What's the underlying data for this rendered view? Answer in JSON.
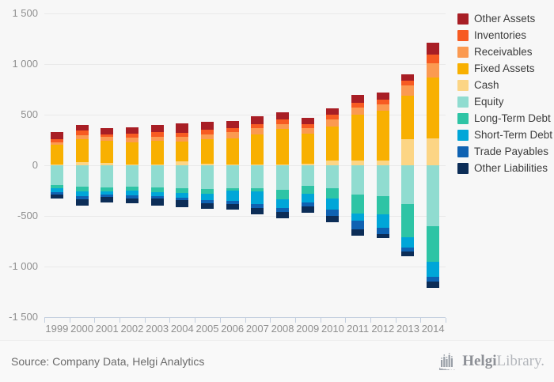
{
  "chart_data": {
    "type": "bar",
    "stacked": true,
    "title": "",
    "xlabel": "",
    "ylabel": "",
    "ylim": [
      -1500,
      1500
    ],
    "grid": true,
    "legend_position": "right",
    "yticks": [
      {
        "value": 1500,
        "label": "1 500"
      },
      {
        "value": 1000,
        "label": "1 000"
      },
      {
        "value": 500,
        "label": "500"
      },
      {
        "value": 0,
        "label": "0"
      },
      {
        "value": -500,
        "label": "-500"
      },
      {
        "value": -1000,
        "label": "-1 000"
      },
      {
        "value": -1500,
        "label": "-1 500"
      }
    ],
    "categories": [
      "1999",
      "2000",
      "2001",
      "2002",
      "2003",
      "2004",
      "2005",
      "2006",
      "2007",
      "2008",
      "2009",
      "2010",
      "2011",
      "2012",
      "2013",
      "2014"
    ],
    "series": [
      {
        "name": "Other Assets",
        "color": "#a81e25",
        "values": [
          70,
          60,
          60,
          65,
          70,
          95,
          80,
          70,
          80,
          70,
          65,
          65,
          80,
          70,
          65,
          120
        ]
      },
      {
        "name": "Inventories",
        "color": "#f75b22",
        "values": [
          30,
          40,
          25,
          40,
          40,
          40,
          45,
          45,
          40,
          45,
          40,
          45,
          45,
          45,
          45,
          85
        ]
      },
      {
        "name": "Receivables",
        "color": "#fb9a51",
        "values": [
          30,
          45,
          40,
          45,
          40,
          45,
          50,
          60,
          60,
          45,
          50,
          70,
          70,
          65,
          105,
          140
        ]
      },
      {
        "name": "Fixed Assets",
        "color": "#f8b001",
        "values": [
          190,
          225,
          220,
          215,
          235,
          195,
          240,
          255,
          295,
          350,
          300,
          340,
          455,
          490,
          425,
          600
        ]
      },
      {
        "name": "Cash",
        "color": "#fcd585",
        "values": [
          10,
          30,
          20,
          10,
          10,
          40,
          15,
          10,
          10,
          10,
          15,
          45,
          45,
          50,
          260,
          265
        ]
      },
      {
        "name": "Equity",
        "color": "#90dcd0",
        "values": [
          -195,
          -210,
          -215,
          -210,
          -220,
          -225,
          -235,
          -225,
          -230,
          -245,
          -205,
          -230,
          -290,
          -305,
          -385,
          -605
        ]
      },
      {
        "name": "Long-Term Debt",
        "color": "#2ec4a5",
        "values": [
          -35,
          -45,
          -40,
          -40,
          -45,
          -45,
          -50,
          -25,
          -30,
          -90,
          -75,
          -100,
          -190,
          -180,
          -325,
          -350
        ]
      },
      {
        "name": "Short-Term Debt",
        "color": "#00a6d8",
        "values": [
          -35,
          -50,
          -35,
          -45,
          -40,
          -50,
          -55,
          -100,
          -120,
          -85,
          -90,
          -110,
          -70,
          -135,
          -100,
          -145
        ]
      },
      {
        "name": "Trade Payables",
        "color": "#0f62b2",
        "values": [
          -25,
          -30,
          -25,
          -30,
          -25,
          -25,
          -35,
          -30,
          -40,
          -40,
          -40,
          -60,
          -80,
          -60,
          -40,
          -45
        ]
      },
      {
        "name": "Other Liabilities",
        "color": "#0c2d57",
        "values": [
          -40,
          -65,
          -50,
          -50,
          -65,
          -70,
          -55,
          -60,
          -65,
          -60,
          -60,
          -65,
          -65,
          -40,
          -50,
          -65
        ]
      }
    ]
  },
  "footer": {
    "source_label": "Source: Company Data, Helgi Analytics"
  },
  "logo": {
    "name_bold": "Helgi",
    "name_light": "Library."
  }
}
